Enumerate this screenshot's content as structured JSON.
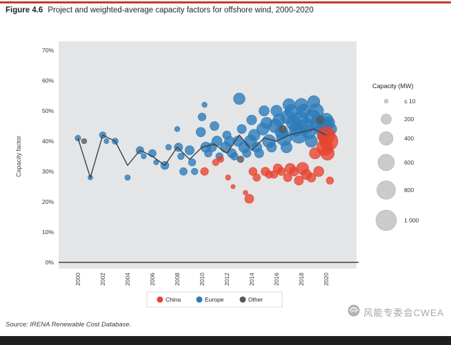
{
  "page": {
    "figure_label": "Figure 4.6",
    "figure_title": "Project and weighted-average capacity factors for offshore wind, 2000-2020",
    "source": "Source: IRENA Renewable Cost Database.",
    "watermark": "风能专委会CWEA"
  },
  "colors": {
    "china": "#e8432e",
    "europe": "#2b7bb9",
    "other": "#55585a",
    "line": "#3c3e40",
    "plot_bg": "#e3e5e6",
    "top_rule": "#c9372b",
    "bottom_bar": "#1f1f1f",
    "size_legend_bubble": "#c9cbcc"
  },
  "chart_data": {
    "type": "scatter",
    "title": "Project and weighted-average capacity factors for offshore wind, 2000-2020",
    "xlabel": "",
    "ylabel": "Capacity factor",
    "ylim": [
      0,
      70
    ],
    "yticks": [
      0,
      10,
      20,
      30,
      40,
      50,
      60,
      70
    ],
    "xticks": [
      2000,
      2002,
      2004,
      2006,
      2008,
      2010,
      2012,
      2014,
      2016,
      2018,
      2020
    ],
    "x_range": [
      1999,
      2022
    ],
    "grid": false,
    "legend_position": "bottom",
    "points_format": [
      "year",
      "capacity_factor_pct",
      "capacity_mw"
    ],
    "series": [
      {
        "name": "China",
        "color_key": "china",
        "points": [
          [
            2010.2,
            30,
            100
          ],
          [
            2011.1,
            33,
            60
          ],
          [
            2011.5,
            34,
            50
          ],
          [
            2012.1,
            28,
            30
          ],
          [
            2012.5,
            25,
            15
          ],
          [
            2013.5,
            23,
            20
          ],
          [
            2013.8,
            21,
            140
          ],
          [
            2014.1,
            30,
            110
          ],
          [
            2014.4,
            28,
            90
          ],
          [
            2015.1,
            30,
            130
          ],
          [
            2015.4,
            29,
            90
          ],
          [
            2015.8,
            29,
            90
          ],
          [
            2016.1,
            31,
            150
          ],
          [
            2016.4,
            30,
            110
          ],
          [
            2016.9,
            28,
            120
          ],
          [
            2017.1,
            31,
            200
          ],
          [
            2017.4,
            30,
            150
          ],
          [
            2017.8,
            27,
            150
          ],
          [
            2018.1,
            31,
            300
          ],
          [
            2018.4,
            29,
            200
          ],
          [
            2018.8,
            28,
            150
          ],
          [
            2019.1,
            36,
            250
          ],
          [
            2019.4,
            30,
            200
          ],
          [
            2019.9,
            38,
            600
          ],
          [
            2020,
            42,
            700
          ],
          [
            2020.1,
            36,
            400
          ],
          [
            2020.2,
            40,
            800
          ],
          [
            2020.3,
            27,
            80
          ]
        ]
      },
      {
        "name": "Europe",
        "color_key": "europe",
        "points": [
          [
            2000,
            41,
            40
          ],
          [
            2001,
            28,
            20
          ],
          [
            2002,
            42,
            60
          ],
          [
            2002.3,
            40,
            25
          ],
          [
            2003,
            40,
            50
          ],
          [
            2004,
            28,
            35
          ],
          [
            2005,
            37,
            90
          ],
          [
            2005.3,
            35,
            30
          ],
          [
            2006,
            36,
            90
          ],
          [
            2006.3,
            33,
            25
          ],
          [
            2007,
            32,
            110
          ],
          [
            2007.3,
            38,
            40
          ],
          [
            2008,
            44,
            30
          ],
          [
            2008.1,
            38,
            120
          ],
          [
            2008.3,
            35,
            60
          ],
          [
            2008.5,
            30,
            90
          ],
          [
            2009,
            37,
            150
          ],
          [
            2009.2,
            33,
            80
          ],
          [
            2009.4,
            30,
            60
          ],
          [
            2009.9,
            43,
            160
          ],
          [
            2010,
            48,
            100
          ],
          [
            2010.2,
            52,
            30
          ],
          [
            2010.3,
            38,
            200
          ],
          [
            2010.5,
            36,
            90
          ],
          [
            2010.8,
            38,
            150
          ],
          [
            2011,
            45,
            140
          ],
          [
            2011.2,
            40,
            200
          ],
          [
            2011.4,
            35,
            80
          ],
          [
            2011.9,
            38,
            220
          ],
          [
            2012,
            42,
            120
          ],
          [
            2012.2,
            40,
            180
          ],
          [
            2012.4,
            36,
            150
          ],
          [
            2012.6,
            35,
            90
          ],
          [
            2012.9,
            40,
            200
          ],
          [
            2013,
            54,
            260
          ],
          [
            2013.2,
            44,
            150
          ],
          [
            2013.4,
            38,
            250
          ],
          [
            2013.6,
            36,
            120
          ],
          [
            2013.9,
            40,
            300
          ],
          [
            2014,
            47,
            180
          ],
          [
            2014.2,
            42,
            260
          ],
          [
            2014.4,
            38,
            200
          ],
          [
            2014.6,
            36,
            150
          ],
          [
            2014.9,
            44,
            300
          ],
          [
            2015,
            50,
            200
          ],
          [
            2015.2,
            46,
            260
          ],
          [
            2015.4,
            40,
            350
          ],
          [
            2015.6,
            38,
            180
          ],
          [
            2015.9,
            45,
            400
          ],
          [
            2016,
            50,
            250
          ],
          [
            2016.2,
            47,
            300
          ],
          [
            2016.4,
            43,
            350
          ],
          [
            2016.6,
            41,
            500
          ],
          [
            2016.8,
            38,
            250
          ],
          [
            2016.9,
            48,
            400
          ],
          [
            2017,
            52,
            300
          ],
          [
            2017.2,
            50,
            350
          ],
          [
            2017.4,
            46,
            500
          ],
          [
            2017.6,
            44,
            450
          ],
          [
            2017.8,
            42,
            600
          ],
          [
            2017.9,
            47,
            600
          ],
          [
            2018,
            52,
            350
          ],
          [
            2018.2,
            50,
            400
          ],
          [
            2018.4,
            45,
            500
          ],
          [
            2018.6,
            43,
            400
          ],
          [
            2018.8,
            40,
            300
          ],
          [
            2018.9,
            48,
            500
          ],
          [
            2019,
            53,
            300
          ],
          [
            2019.2,
            50,
            450
          ],
          [
            2019.4,
            46,
            600
          ],
          [
            2019.6,
            44,
            400
          ],
          [
            2019.8,
            42,
            350
          ],
          [
            2019.9,
            45,
            350
          ],
          [
            2020,
            47,
            400
          ],
          [
            2020.2,
            46,
            300
          ],
          [
            2020.4,
            44,
            250
          ]
        ]
      },
      {
        "name": "Other",
        "color_key": "other",
        "points": [
          [
            2000.5,
            40,
            30
          ],
          [
            2013.1,
            34,
            60
          ],
          [
            2016.5,
            44,
            80
          ],
          [
            2019.5,
            47,
            90
          ]
        ]
      }
    ],
    "weighted_average": {
      "years": [
        2000,
        2001,
        2002,
        2003,
        2004,
        2005,
        2006,
        2007,
        2008,
        2009,
        2010,
        2011,
        2012,
        2013,
        2014,
        2015,
        2016,
        2017,
        2018,
        2019,
        2020
      ],
      "values": [
        41,
        28,
        42,
        40,
        32,
        37,
        35,
        32,
        38,
        34,
        38,
        39,
        36,
        42,
        37,
        41,
        40,
        42,
        43,
        44,
        42
      ]
    },
    "size_legend": {
      "title": "Capacity (MW)",
      "entries": [
        {
          "label": "≤ 10",
          "mw": 10
        },
        {
          "label": "200",
          "mw": 200
        },
        {
          "label": "400",
          "mw": 400
        },
        {
          "label": "600",
          "mw": 600
        },
        {
          "label": "800",
          "mw": 800
        },
        {
          "label": "1 000",
          "mw": 1000
        }
      ]
    }
  }
}
